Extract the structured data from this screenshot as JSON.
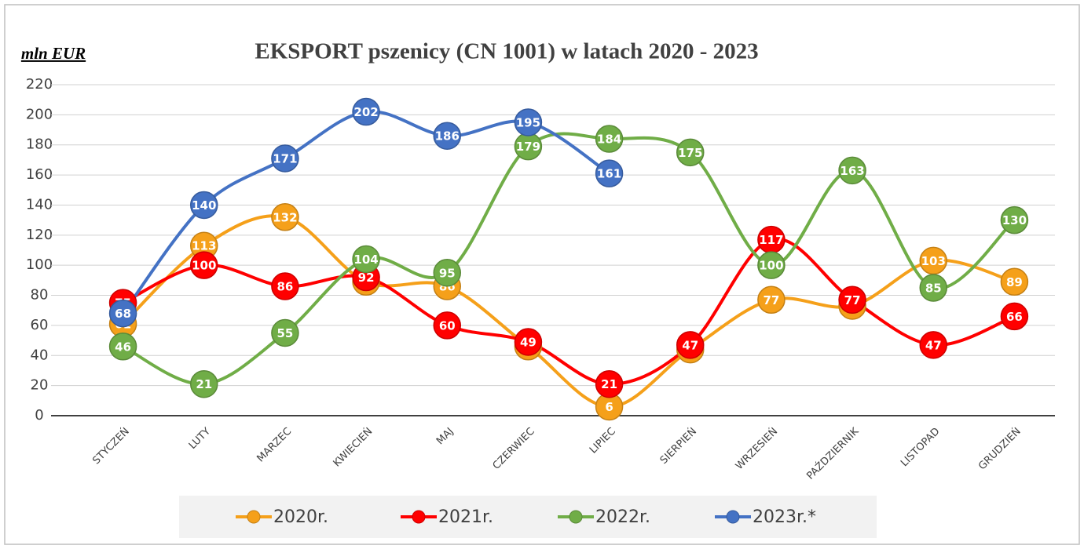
{
  "chart_data": {
    "type": "line",
    "title": "EKSPORT pszenicy (CN 1001) w latach 2020 - 2023",
    "y_label": "mln EUR",
    "categories": [
      "STYCZEŃ",
      "LUTY",
      "MARZEC",
      "KWIECIEŃ",
      "MAJ",
      "CZERWIEC",
      "LIPIEC",
      "SIERPIEŃ",
      "WRZESIEŃ",
      "PAŹDZIERNIK",
      "LISTOPAD",
      "GRUDZIEŃ"
    ],
    "series": [
      {
        "name": "2020r.",
        "color": "#f5a01a",
        "values": [
          61,
          113,
          132,
          89,
          86,
          46,
          6,
          44,
          77,
          73,
          103,
          89
        ]
      },
      {
        "name": "2021r.",
        "color": "#ff0000",
        "values": [
          75,
          100,
          86,
          92,
          60,
          49,
          21,
          47,
          117,
          77,
          47,
          66
        ]
      },
      {
        "name": "2022r.",
        "color": "#70ad47",
        "values": [
          46,
          21,
          55,
          104,
          95,
          179,
          184,
          175,
          100,
          163,
          85,
          130
        ]
      },
      {
        "name": "2023r.*",
        "color": "#4472c4",
        "values": [
          68,
          140,
          171,
          202,
          186,
          195,
          161,
          null,
          null,
          null,
          null,
          null
        ]
      }
    ],
    "ylim": [
      0,
      220
    ],
    "yticks": [
      0,
      20,
      40,
      60,
      80,
      100,
      120,
      140,
      160,
      180,
      200,
      220
    ],
    "grid": true,
    "smooth": true,
    "legend": "bottom"
  }
}
